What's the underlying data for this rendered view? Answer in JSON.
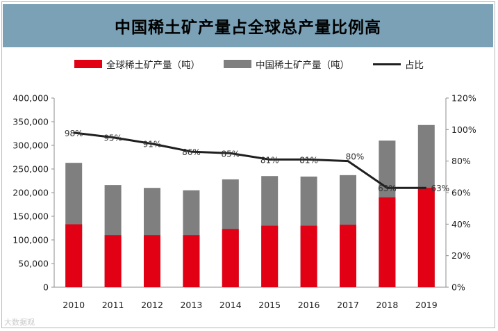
{
  "title": "中国稀土矿产量占全球总产量比例高",
  "colors": {
    "title_bg": "#7aa1b6",
    "global": "#e10014",
    "china": "#7f7f7f",
    "ratio": "#1f1f1f"
  },
  "watermark": "大数据观",
  "chart_data": {
    "type": "bar",
    "stacked_overlay": true,
    "title": "中国稀土矿产量占全球总产量比例高",
    "categories": [
      "2010",
      "2011",
      "2012",
      "2013",
      "2014",
      "2015",
      "2016",
      "2017",
      "2018",
      "2019"
    ],
    "series": [
      {
        "name": "全球稀土矿产量（吨）",
        "axis": "left",
        "values": [
          133000,
          110000,
          110000,
          110000,
          123000,
          130000,
          130000,
          132000,
          190000,
          210000
        ]
      },
      {
        "name": "中国稀土矿产量（吨）",
        "axis": "left",
        "values": [
          263000,
          216000,
          210000,
          205000,
          228000,
          235000,
          234000,
          237000,
          310000,
          343000
        ]
      },
      {
        "name": "占比",
        "type": "line",
        "axis": "right",
        "values": [
          98,
          95,
          91,
          86,
          85,
          81,
          81,
          80,
          63,
          63
        ],
        "labels": [
          "98%",
          "95%",
          "91%",
          "86%",
          "85%",
          "81%",
          "81%",
          "80%",
          "63%",
          "63%"
        ]
      }
    ],
    "y_left": {
      "min": 0,
      "max": 400000,
      "step": 50000,
      "ticks": [
        "0",
        "50,000",
        "100,000",
        "150,000",
        "200,000",
        "250,000",
        "300,000",
        "350,000",
        "400,000"
      ]
    },
    "y_right": {
      "min": 0,
      "max": 120,
      "step": 20,
      "ticks": [
        "0%",
        "20%",
        "40%",
        "60%",
        "80%",
        "100%",
        "120%"
      ]
    },
    "legend": "top-center",
    "grid": false
  }
}
